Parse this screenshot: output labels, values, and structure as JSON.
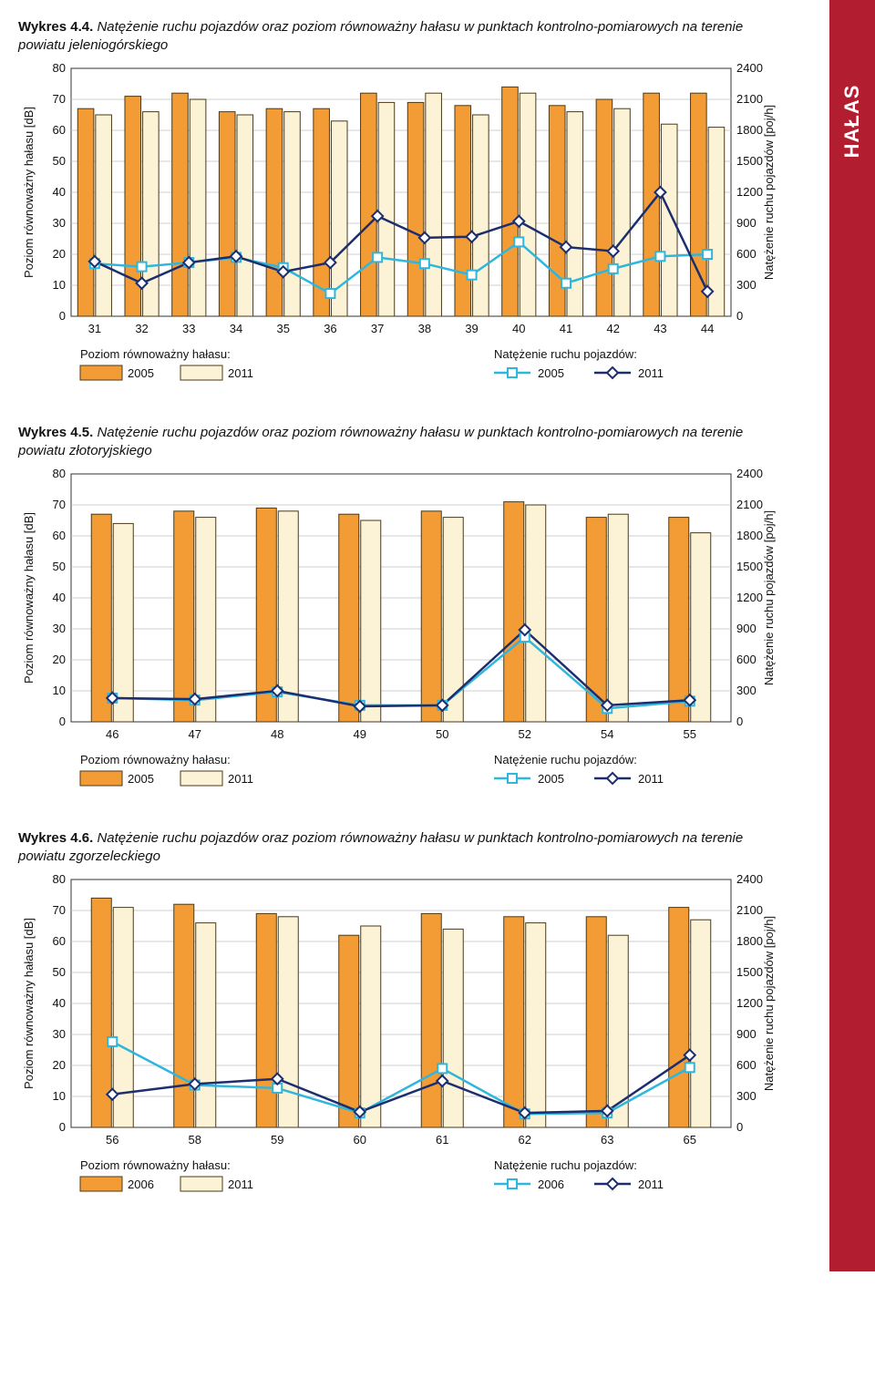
{
  "sidebar": {
    "label": "HAŁAS"
  },
  "colors": {
    "orange": "#f39c35",
    "cream": "#fcf3d6",
    "barBorder": "#4a3a1a",
    "grid": "#bfbfbf",
    "axis": "#333333",
    "cyan": "#2fb6dd",
    "navy": "#1c2e6e",
    "text": "#111111"
  },
  "axisLeft": {
    "label": "Poziom równoważny hałasu [dB]",
    "min": 0,
    "max": 80,
    "step": 10
  },
  "axisRight": {
    "label": "Natężenie ruchu pojazdów [poj/h]",
    "min": 0,
    "max": 2400,
    "step": 300
  },
  "legend": {
    "left": "Poziom równoważny hałasu:",
    "right": "Natężenie ruchu pojazdów:"
  },
  "charts": [
    {
      "id": "c44",
      "captionBold": "Wykres 4.4.",
      "captionRest": "Natężenie ruchu pojazdów oraz poziom równoważny hałasu w punktach kontrolno-pomiarowych na terenie powiatu jeleniogórskiego",
      "categories": [
        "31",
        "32",
        "33",
        "34",
        "35",
        "36",
        "37",
        "38",
        "39",
        "40",
        "41",
        "42",
        "43",
        "44"
      ],
      "barsA": [
        67,
        71,
        72,
        66,
        67,
        67,
        72,
        69,
        68,
        74,
        68,
        70,
        72,
        72
      ],
      "barsB": [
        65,
        66,
        70,
        65,
        66,
        63,
        69,
        72,
        65,
        72,
        66,
        67,
        62,
        61
      ],
      "lineA": [
        510,
        480,
        520,
        570,
        470,
        220,
        570,
        510,
        400,
        720,
        320,
        460,
        580,
        600
      ],
      "lineB": [
        530,
        320,
        520,
        580,
        430,
        520,
        970,
        760,
        770,
        920,
        670,
        630,
        1200,
        240
      ],
      "labelA": "2005",
      "labelB": "2011"
    },
    {
      "id": "c45",
      "captionBold": "Wykres 4.5.",
      "captionRest": "Natężenie ruchu pojazdów oraz poziom równoważny hałasu w punktach kontrolno-pomiarowych na terenie powiatu złotoryjskiego",
      "categories": [
        "46",
        "47",
        "48",
        "49",
        "50",
        "52",
        "54",
        "55"
      ],
      "barsA": [
        67,
        68,
        69,
        67,
        68,
        71,
        66,
        66
      ],
      "barsB": [
        64,
        66,
        68,
        65,
        66,
        70,
        67,
        61
      ],
      "lineA": [
        230,
        210,
        290,
        160,
        160,
        820,
        130,
        200
      ],
      "lineB": [
        230,
        220,
        300,
        150,
        160,
        890,
        160,
        210
      ],
      "labelA": "2005",
      "labelB": "2011"
    },
    {
      "id": "c46",
      "captionBold": "Wykres 4.6.",
      "captionRest": "Natężenie ruchu pojazdów oraz poziom równoważny hałasu w punktach kontrolno-pomiarowych na terenie powiatu zgorzeleckiego",
      "categories": [
        "56",
        "58",
        "59",
        "60",
        "61",
        "62",
        "63",
        "65"
      ],
      "barsA": [
        74,
        72,
        69,
        62,
        69,
        68,
        68,
        71
      ],
      "barsB": [
        71,
        66,
        68,
        65,
        64,
        66,
        62,
        67
      ],
      "lineA": [
        830,
        410,
        380,
        140,
        570,
        130,
        140,
        580
      ],
      "lineB": [
        320,
        420,
        470,
        150,
        450,
        140,
        160,
        700
      ],
      "labelA": "2006",
      "labelB": "2011"
    }
  ]
}
